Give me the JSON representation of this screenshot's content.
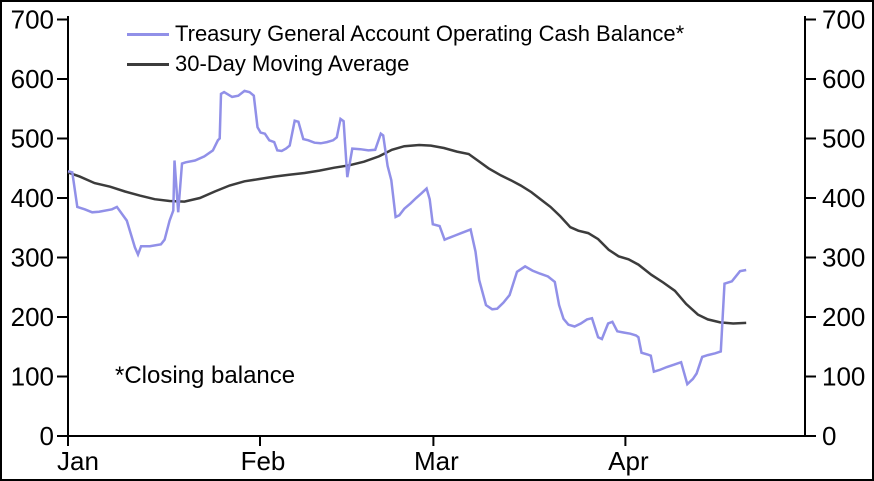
{
  "window": {
    "background": "#FFFFFF",
    "border_color": "#000000"
  },
  "colors": {
    "axis": "#000000",
    "text": "#000000"
  },
  "chart_data": {
    "type": "line",
    "title": "",
    "xlabel": "",
    "ylabel": "",
    "grid": false,
    "legend_position": "top-left",
    "annotation": "*Closing balance",
    "x_axis": {
      "unit": "months",
      "tick_labels": [
        "Jan",
        "Feb",
        "Mar",
        "Apr"
      ],
      "tick_days": [
        0,
        31,
        59,
        90
      ],
      "range_days": [
        0,
        119
      ]
    },
    "y_axis": {
      "tick_labels": [
        "0",
        "100",
        "200",
        "300",
        "400",
        "500",
        "600",
        "700"
      ],
      "tick_values": [
        0,
        100,
        200,
        300,
        400,
        500,
        600,
        700
      ],
      "range": [
        0,
        700
      ],
      "mirror_right": true
    },
    "series": [
      {
        "name": "Treasury General Account Operating Cash Balance*",
        "color": "#9190E8",
        "points": [
          [
            0,
            445
          ],
          [
            0.7,
            443
          ],
          [
            1.5,
            385
          ],
          [
            2.7,
            381
          ],
          [
            3.9,
            376
          ],
          [
            5,
            377
          ],
          [
            7.1,
            381
          ],
          [
            7.9,
            385
          ],
          [
            9.5,
            362
          ],
          [
            10.8,
            317
          ],
          [
            11.3,
            305
          ],
          [
            11.8,
            319
          ],
          [
            13.2,
            319
          ],
          [
            15,
            322
          ],
          [
            15.6,
            330
          ],
          [
            16.4,
            362
          ],
          [
            17,
            379
          ],
          [
            17.2,
            463
          ],
          [
            17.8,
            376
          ],
          [
            18.4,
            458
          ],
          [
            19,
            460
          ],
          [
            20.5,
            463
          ],
          [
            22,
            470
          ],
          [
            23.4,
            480
          ],
          [
            24.2,
            497
          ],
          [
            24.5,
            500
          ],
          [
            24.7,
            575
          ],
          [
            25.2,
            578
          ],
          [
            26.5,
            570
          ],
          [
            27.5,
            572
          ],
          [
            28.5,
            580
          ],
          [
            29.3,
            578
          ],
          [
            30,
            572
          ],
          [
            30.6,
            519
          ],
          [
            31.1,
            510
          ],
          [
            31.8,
            508
          ],
          [
            32.5,
            497
          ],
          [
            33.3,
            494
          ],
          [
            33.8,
            480
          ],
          [
            34.5,
            479
          ],
          [
            35.2,
            483
          ],
          [
            35.8,
            488
          ],
          [
            36.6,
            530
          ],
          [
            37.2,
            528
          ],
          [
            38,
            499
          ],
          [
            38.8,
            497
          ],
          [
            39.8,
            493
          ],
          [
            40.8,
            492
          ],
          [
            41.8,
            494
          ],
          [
            42.8,
            497
          ],
          [
            43.4,
            502
          ],
          [
            44,
            533
          ],
          [
            44.5,
            529
          ],
          [
            45.1,
            435
          ],
          [
            45.9,
            483
          ],
          [
            47.2,
            482
          ],
          [
            48.5,
            480
          ],
          [
            49.6,
            481
          ],
          [
            50.5,
            508
          ],
          [
            50.9,
            505
          ],
          [
            51.6,
            454
          ],
          [
            52.2,
            430
          ],
          [
            52.9,
            368
          ],
          [
            53.5,
            371
          ],
          [
            54.3,
            382
          ],
          [
            55.3,
            391
          ],
          [
            56.2,
            400
          ],
          [
            57.1,
            408
          ],
          [
            57.9,
            416
          ],
          [
            58.4,
            398
          ],
          [
            58.9,
            356
          ],
          [
            60,
            353
          ],
          [
            60.8,
            330
          ],
          [
            61.5,
            333
          ],
          [
            62.5,
            337
          ],
          [
            63.5,
            341
          ],
          [
            64.5,
            345
          ],
          [
            65,
            347
          ],
          [
            65.8,
            310
          ],
          [
            66.4,
            262
          ],
          [
            67.5,
            220
          ],
          [
            68.5,
            213
          ],
          [
            69.3,
            214
          ],
          [
            70.3,
            224
          ],
          [
            71.3,
            237
          ],
          [
            72.5,
            276
          ],
          [
            73.8,
            285
          ],
          [
            75,
            278
          ],
          [
            76.2,
            273
          ],
          [
            77.5,
            268
          ],
          [
            78.6,
            259
          ],
          [
            79.3,
            220
          ],
          [
            80,
            197
          ],
          [
            80.8,
            187
          ],
          [
            81.8,
            184
          ],
          [
            82.8,
            189
          ],
          [
            83.8,
            196
          ],
          [
            84.6,
            198
          ],
          [
            85.6,
            166
          ],
          [
            86.2,
            163
          ],
          [
            87.2,
            189
          ],
          [
            87.9,
            192
          ],
          [
            88.7,
            176
          ],
          [
            89.7,
            174
          ],
          [
            90.8,
            172
          ],
          [
            91.7,
            169
          ],
          [
            92.1,
            166
          ],
          [
            92.6,
            140
          ],
          [
            93.6,
            137
          ],
          [
            94.1,
            135
          ],
          [
            94.6,
            108
          ],
          [
            95.5,
            111
          ],
          [
            96.7,
            116
          ],
          [
            97.9,
            120
          ],
          [
            99,
            124
          ],
          [
            100,
            87
          ],
          [
            100.9,
            96
          ],
          [
            101.5,
            105
          ],
          [
            102.4,
            133
          ],
          [
            103.3,
            136
          ],
          [
            104.5,
            139
          ],
          [
            105.4,
            142
          ],
          [
            106,
            256
          ],
          [
            107.2,
            260
          ],
          [
            108.5,
            277
          ],
          [
            109.5,
            279
          ]
        ]
      },
      {
        "name": "30-Day Moving Average",
        "color": "#3C3C3C",
        "points": [
          [
            0,
            443
          ],
          [
            1.9,
            436
          ],
          [
            4.3,
            425
          ],
          [
            6.8,
            419
          ],
          [
            9.2,
            411
          ],
          [
            11.6,
            404
          ],
          [
            14,
            398
          ],
          [
            16.4,
            395
          ],
          [
            18.8,
            394
          ],
          [
            21.3,
            400
          ],
          [
            23.7,
            411
          ],
          [
            26.1,
            421
          ],
          [
            28.5,
            428
          ],
          [
            30.9,
            432
          ],
          [
            33.3,
            436
          ],
          [
            35.7,
            439
          ],
          [
            38.2,
            442
          ],
          [
            40.6,
            446
          ],
          [
            43,
            451
          ],
          [
            45.4,
            455
          ],
          [
            47.8,
            461
          ],
          [
            50.2,
            470
          ],
          [
            52.3,
            481
          ],
          [
            54.3,
            487
          ],
          [
            56.7,
            489
          ],
          [
            58.6,
            488
          ],
          [
            60.7,
            484
          ],
          [
            62.8,
            478
          ],
          [
            64.7,
            474
          ],
          [
            66.3,
            462
          ],
          [
            67.9,
            450
          ],
          [
            69.9,
            438
          ],
          [
            71.5,
            430
          ],
          [
            73.1,
            421
          ],
          [
            74.8,
            410
          ],
          [
            76.3,
            398
          ],
          [
            77.9,
            385
          ],
          [
            79.5,
            369
          ],
          [
            81.1,
            351
          ],
          [
            82.4,
            345
          ],
          [
            84,
            341
          ],
          [
            85.6,
            331
          ],
          [
            87.3,
            313
          ],
          [
            88.9,
            302
          ],
          [
            90.5,
            297
          ],
          [
            92.1,
            288
          ],
          [
            94.2,
            271
          ],
          [
            96.1,
            258
          ],
          [
            98,
            244
          ],
          [
            99.8,
            222
          ],
          [
            101.7,
            204
          ],
          [
            103.3,
            196
          ],
          [
            105.3,
            191
          ],
          [
            107.4,
            189
          ],
          [
            109.5,
            190
          ]
        ]
      }
    ]
  }
}
